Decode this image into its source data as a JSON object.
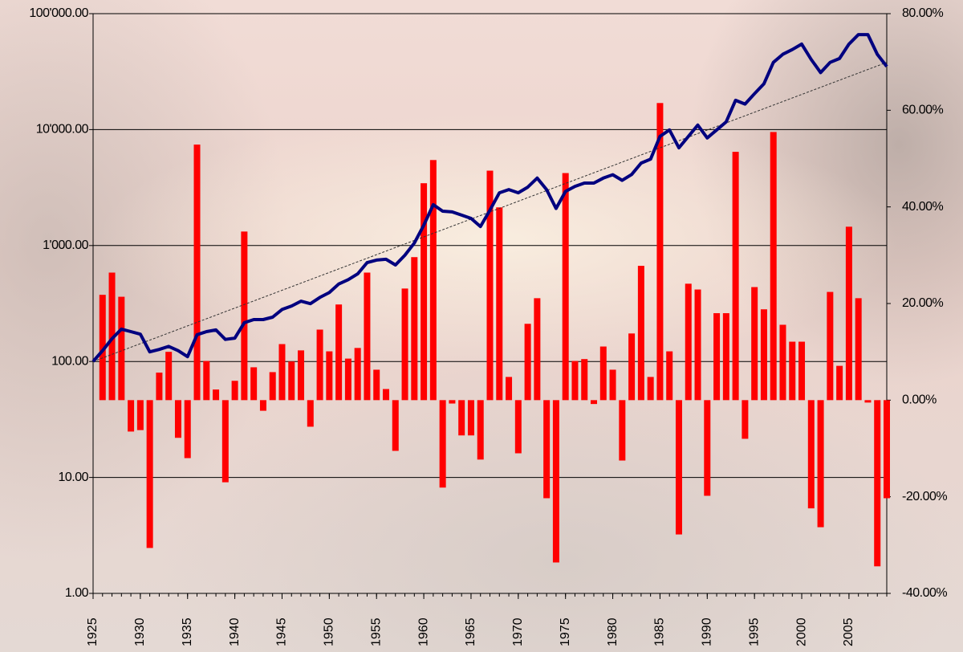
{
  "chart_data": {
    "type": "combo",
    "x": [
      1925,
      1926,
      1927,
      1928,
      1929,
      1930,
      1931,
      1932,
      1933,
      1934,
      1935,
      1936,
      1937,
      1938,
      1939,
      1940,
      1941,
      1942,
      1943,
      1944,
      1945,
      1946,
      1947,
      1948,
      1949,
      1950,
      1951,
      1952,
      1953,
      1954,
      1955,
      1956,
      1957,
      1958,
      1959,
      1960,
      1961,
      1962,
      1963,
      1964,
      1965,
      1966,
      1967,
      1968,
      1969,
      1970,
      1971,
      1972,
      1973,
      1974,
      1975,
      1976,
      1977,
      1978,
      1979,
      1980,
      1981,
      1982,
      1983,
      1984,
      1985,
      1986,
      1987,
      1988,
      1989,
      1990,
      1991,
      1992,
      1993,
      1994,
      1995,
      1996,
      1997,
      1998,
      1999,
      2000,
      2001,
      2002,
      2003,
      2004,
      2005,
      2006,
      2007,
      2008,
      2009
    ],
    "series": [
      {
        "type": "bar",
        "axis": "y2",
        "color": "#ff0000",
        "values": [
          null,
          21.8,
          26.4,
          21.4,
          -6.5,
          -6.2,
          -30.6,
          5.7,
          10.0,
          -7.8,
          -12.0,
          52.9,
          8.1,
          2.2,
          -17.0,
          4.0,
          34.9,
          6.8,
          -2.2,
          5.8,
          11.6,
          8.0,
          10.3,
          -5.5,
          14.6,
          10.1,
          19.8,
          8.6,
          10.8,
          26.4,
          6.3,
          2.3,
          -10.5,
          23.1,
          29.6,
          44.9,
          49.7,
          -18.1,
          -0.7,
          -7.3,
          -7.3,
          -12.3,
          47.5,
          39.9,
          4.8,
          -11.0,
          15.8,
          21.1,
          -20.3,
          -33.6,
          47.0,
          8.1,
          8.5,
          -0.8,
          11.1,
          6.3,
          -12.5,
          13.8,
          27.8,
          4.8,
          61.5,
          10.1,
          -27.8,
          24.1,
          22.9,
          -19.8,
          18.0,
          18.0,
          51.4,
          -8.0,
          23.4,
          18.8,
          55.5,
          15.6,
          12.1,
          12.1,
          -22.4,
          -26.3,
          22.4,
          7.1,
          35.9,
          21.1,
          -0.5,
          -34.4,
          -20.3
        ]
      },
      {
        "type": "line",
        "color": "#00007f",
        "values": [
          100,
          124,
          157,
          190,
          181,
          172,
          121,
          127,
          135,
          124,
          110,
          170,
          181,
          187,
          155,
          159,
          216,
          230,
          230,
          241,
          281,
          301,
          331,
          315,
          357,
          393,
          466,
          508,
          570,
          712,
          749,
          761,
          680,
          824,
          1050,
          1500,
          2250,
          1980,
          1950,
          1830,
          1715,
          1460,
          2020,
          2850,
          3040,
          2850,
          3190,
          3820,
          3040,
          2090,
          2930,
          3240,
          3460,
          3460,
          3820,
          4080,
          3650,
          4100,
          5140,
          5560,
          8730,
          9930,
          6960,
          8730,
          10930,
          8470,
          9930,
          11640,
          17900,
          16600,
          20400,
          24800,
          38000,
          44600,
          49000,
          54600,
          40300,
          31000,
          38000,
          41000,
          54600,
          66000,
          66000,
          44600,
          35000
        ]
      }
    ],
    "trendline": {
      "x": [
        1925,
        2009
      ],
      "values": [
        100,
        38000
      ]
    },
    "xlim": [
      1925,
      2009
    ],
    "xticks": [
      1925,
      1930,
      1935,
      1940,
      1945,
      1950,
      1955,
      1960,
      1965,
      1970,
      1975,
      1980,
      1985,
      1990,
      1995,
      2000,
      2005
    ],
    "log_y": true,
    "ylim": [
      1,
      100000
    ],
    "yticks": [
      {
        "value": 1,
        "label": "1.00"
      },
      {
        "value": 10,
        "label": "10.00"
      },
      {
        "value": 100,
        "label": "100.00"
      },
      {
        "value": 1000,
        "label": "1'000.00"
      },
      {
        "value": 10000,
        "label": "10'000.00"
      },
      {
        "value": 100000,
        "label": "100'000.00"
      }
    ],
    "y2lim": [
      -40,
      80
    ],
    "y2ticks": [
      {
        "value": -40,
        "label": "-40.00%"
      },
      {
        "value": -20,
        "label": "-20.00%"
      },
      {
        "value": 0,
        "label": "0.00%"
      },
      {
        "value": 20,
        "label": "20.00%"
      },
      {
        "value": 40,
        "label": "40.00%"
      },
      {
        "value": 60,
        "label": "60.00%"
      },
      {
        "value": 80,
        "label": "80.00%"
      }
    ],
    "grid": true
  }
}
